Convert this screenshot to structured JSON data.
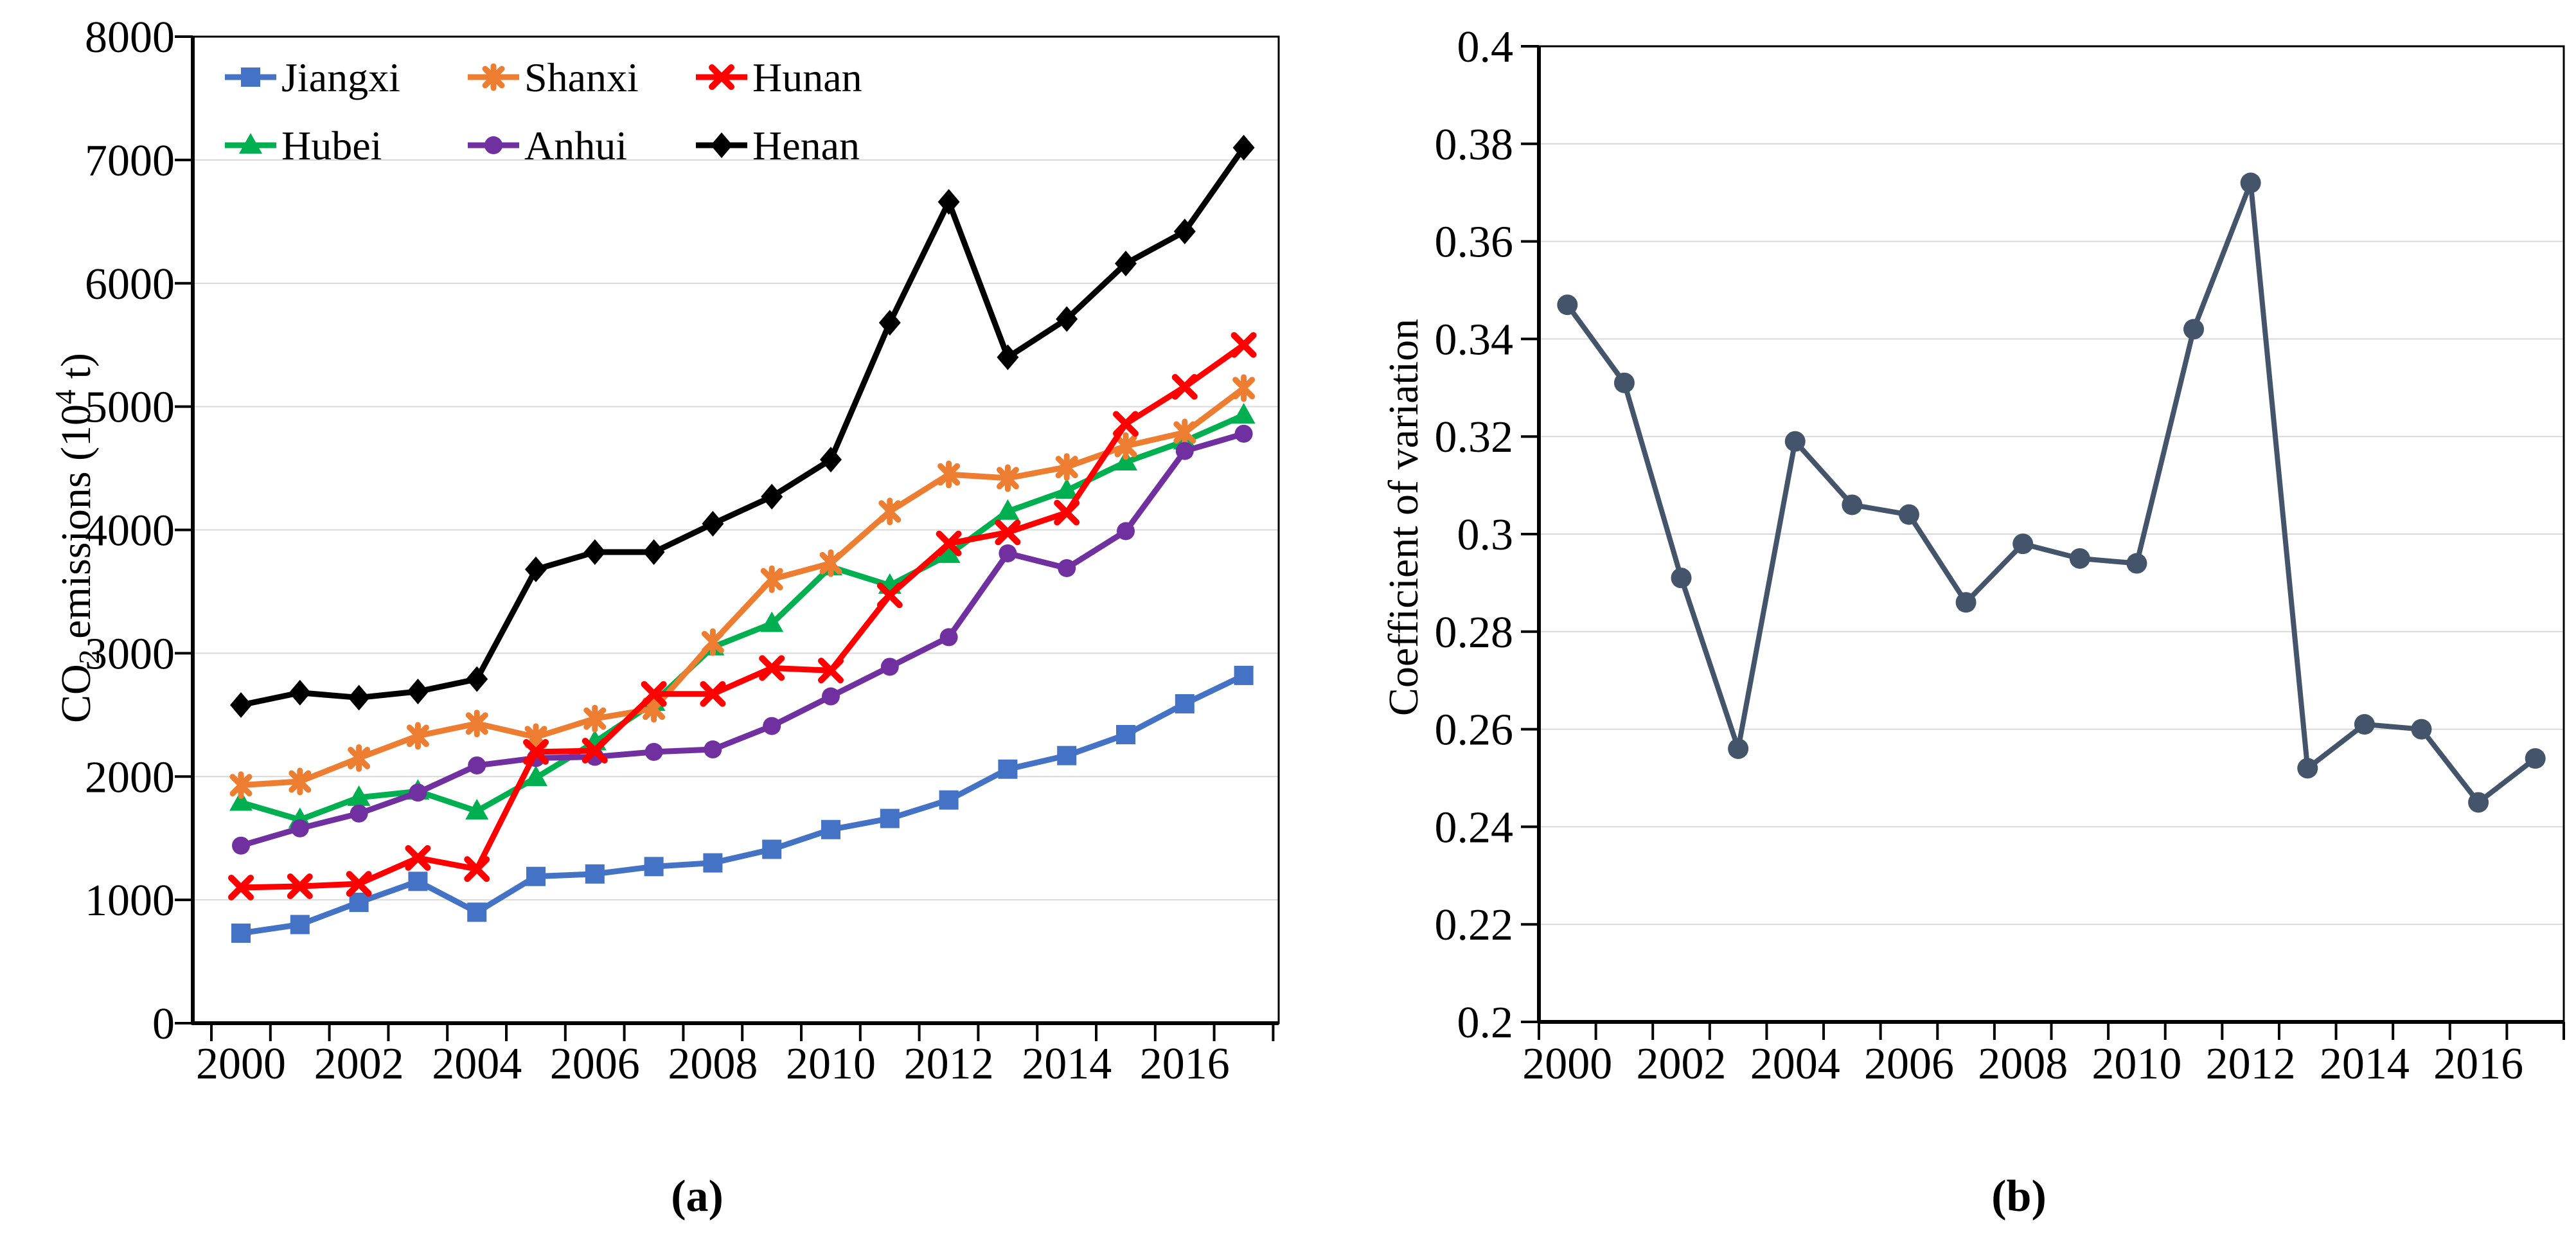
{
  "figure": {
    "caption_a": "(a)",
    "caption_b": "(b)",
    "panel_a_ylabel_parts": {
      "base1": "CO",
      "sub": "2",
      "base2": " emissions (10",
      "sup": "4",
      "base3": " t)"
    },
    "panel_b_ylabel": "Coefficient of variation"
  },
  "chart_data": [
    {
      "id": "a",
      "type": "line",
      "title": "",
      "xlabel": "",
      "ylabel": "CO2 emissions (10^4 t)",
      "x": [
        2000,
        2001,
        2002,
        2003,
        2004,
        2005,
        2006,
        2007,
        2008,
        2009,
        2010,
        2011,
        2012,
        2013,
        2014,
        2015,
        2016,
        2017
      ],
      "x_tick_labels": [
        "2000",
        "2002",
        "2004",
        "2006",
        "2008",
        "2010",
        "2012",
        "2014",
        "2016"
      ],
      "ylim": [
        0,
        8000
      ],
      "y_tick_step": 1000,
      "y_tick_labels": [
        "0",
        "1000",
        "2000",
        "3000",
        "4000",
        "5000",
        "6000",
        "7000",
        "8000"
      ],
      "grid": "horizontal",
      "legend_position": "inside-top, 3 columns, 2 rows",
      "legend_layout": [
        [
          "Jiangxi",
          "Hubei"
        ],
        [
          "Shanxi",
          "Anhui"
        ],
        [
          "Hunan",
          "Henan"
        ]
      ],
      "series": [
        {
          "name": "Jiangxi",
          "color": "#4472C4",
          "marker": "square",
          "values": [
            730,
            800,
            980,
            1150,
            900,
            1190,
            1210,
            1270,
            1300,
            1410,
            1570,
            1660,
            1810,
            2060,
            2170,
            2340,
            2590,
            2820
          ]
        },
        {
          "name": "Hubei",
          "color": "#00B050",
          "marker": "triangle",
          "values": [
            1790,
            1650,
            1830,
            1880,
            1720,
            1990,
            2280,
            2600,
            3050,
            3240,
            3700,
            3550,
            3800,
            4150,
            4320,
            4550,
            4720,
            4930
          ]
        },
        {
          "name": "Shanxi",
          "color": "#ED7D31",
          "marker": "asterisk",
          "values": [
            1930,
            1960,
            2150,
            2330,
            2430,
            2320,
            2470,
            2550,
            3090,
            3600,
            3730,
            4150,
            4450,
            4420,
            4510,
            4680,
            4790,
            5150
          ]
        },
        {
          "name": "Anhui",
          "color": "#7030A0",
          "marker": "circle",
          "values": [
            1440,
            1580,
            1700,
            1870,
            2090,
            2150,
            2160,
            2200,
            2220,
            2410,
            2650,
            2890,
            3130,
            3810,
            3690,
            3990,
            4640,
            4780
          ]
        },
        {
          "name": "Hunan",
          "color": "#FF0000",
          "marker": "x",
          "values": [
            1100,
            1110,
            1130,
            1340,
            1250,
            2200,
            2210,
            2670,
            2670,
            2880,
            2860,
            3470,
            3890,
            3980,
            4140,
            4860,
            5160,
            5500
          ]
        },
        {
          "name": "Henan",
          "color": "#000000",
          "marker": "diamond",
          "values": [
            2580,
            2680,
            2640,
            2690,
            2790,
            3680,
            3820,
            3820,
            4050,
            4270,
            4570,
            5680,
            6660,
            5400,
            5710,
            6160,
            6420,
            7100
          ]
        }
      ]
    },
    {
      "id": "b",
      "type": "line",
      "title": "",
      "xlabel": "",
      "ylabel": "Coefficient of variation",
      "x": [
        2000,
        2001,
        2002,
        2003,
        2004,
        2005,
        2006,
        2007,
        2008,
        2009,
        2010,
        2011,
        2012,
        2013,
        2014,
        2015,
        2016,
        2017
      ],
      "x_tick_labels": [
        "2000",
        "2002",
        "2004",
        "2006",
        "2008",
        "2010",
        "2012",
        "2014",
        "2016"
      ],
      "ylim": [
        0.2,
        0.4
      ],
      "y_tick_step": 0.02,
      "y_tick_labels": [
        "0.2",
        "0.22",
        "0.24",
        "0.26",
        "0.28",
        "0.3",
        "0.32",
        "0.34",
        "0.36",
        "0.38",
        "0.4"
      ],
      "grid": "horizontal",
      "legend_position": "none",
      "series": [
        {
          "name": "Coefficient of variation",
          "color": "#44546A",
          "marker": "circle",
          "values": [
            0.347,
            0.331,
            0.291,
            0.256,
            0.319,
            0.306,
            0.304,
            0.286,
            0.298,
            0.295,
            0.294,
            0.342,
            0.372,
            0.252,
            0.261,
            0.26,
            0.245,
            0.254
          ]
        }
      ]
    }
  ]
}
